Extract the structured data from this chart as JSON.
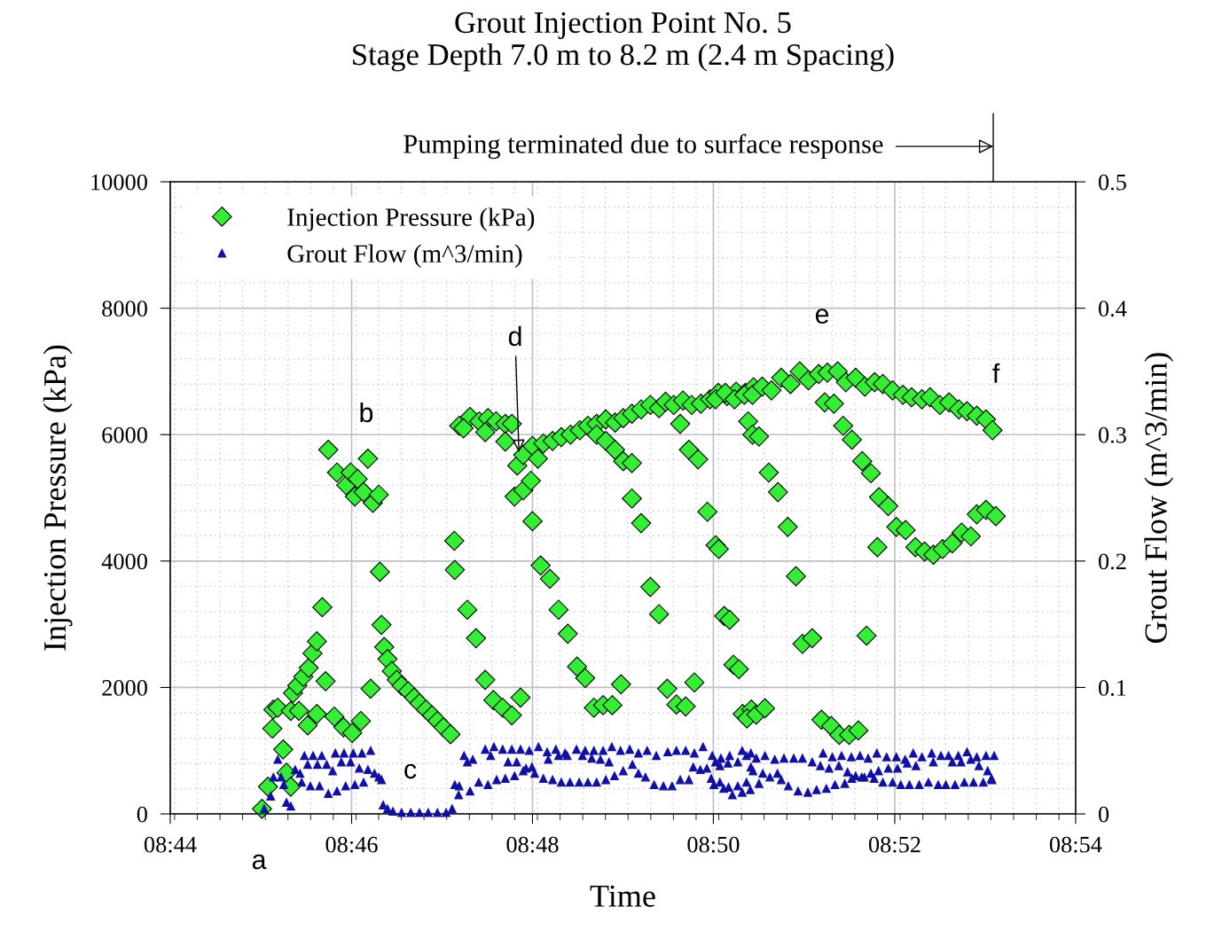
{
  "chart_data": {
    "type": "scatter",
    "title": "Grout Injection Point No. 5\nStage Depth 7.0 m to 8.2 m (2.4 m Spacing)",
    "xlabel": "Time",
    "ylabel": "Injection Pressure (kPa)",
    "y2label": "Grout Flow (m^3/min)",
    "xlim": [
      8.7333,
      8.9
    ],
    "xticks": [
      {
        "value": 8.7333,
        "label": "08:44"
      },
      {
        "value": 8.7667,
        "label": "08:46"
      },
      {
        "value": 8.8,
        "label": "08:48"
      },
      {
        "value": 8.8333,
        "label": "08:50"
      },
      {
        "value": 8.8667,
        "label": "08:52"
      },
      {
        "value": 8.9,
        "label": "08:54"
      }
    ],
    "ylim": [
      0,
      10000
    ],
    "yticks": [
      0,
      2000,
      4000,
      6000,
      8000,
      10000
    ],
    "y2lim": [
      0,
      0.5
    ],
    "y2ticks": [
      0,
      0.1,
      0.2,
      0.3,
      0.4,
      0.5
    ],
    "grid": true,
    "legend": "top left",
    "annotations": [
      "a",
      "b",
      "c",
      {
        "text": "d",
        "x": 8.7975,
        "y": 5720
      },
      "e",
      "f",
      "Pumping terminated due to surface response"
    ],
    "series": [
      {
        "name": "Injection Pressure (kPa)",
        "color": "#33ee33",
        "marker": "diamond",
        "axis": "y",
        "x": [
          8.7502,
          8.7513,
          8.7521,
          8.7523,
          8.7531,
          8.7541,
          8.7547,
          8.7555,
          8.7555,
          8.7559,
          8.7567,
          8.757,
          8.7578,
          8.7586,
          8.7588,
          8.7595,
          8.7603,
          8.7603,
          8.7613,
          8.7619,
          8.7624,
          8.7635,
          8.764,
          8.7652,
          8.7657,
          8.7665,
          8.7668,
          8.7673,
          8.7678,
          8.7684,
          8.7689,
          8.7697,
          8.7702,
          8.7706,
          8.7717,
          8.7719,
          8.7722,
          8.7727,
          8.7733,
          8.7741,
          8.775,
          8.7759,
          8.7771,
          8.7782,
          8.7792,
          8.7804,
          8.7815,
          8.7825,
          8.7836,
          8.7849,
          8.7856,
          8.7857,
          8.788,
          8.7896,
          8.7913,
          8.7928,
          8.7945,
          8.7962,
          8.7978,
          8.7865,
          8.7885,
          8.7902,
          8.7918,
          8.7933,
          8.795,
          8.7962,
          8.7873,
          8.7913,
          8.795,
          8.7972,
          8.7967,
          8.7983,
          8.7997,
          8.8,
          8.7983,
          8.8,
          8.801,
          8.802,
          8.8037,
          8.8053,
          8.807,
          8.8087,
          8.8102,
          8.8118,
          8.8135,
          8.8152,
          8.8167,
          8.8183,
          8.82,
          8.8217,
          8.8233,
          8.8245,
          8.826,
          8.8277,
          8.8293,
          8.831,
          8.8327,
          8.8342,
          8.8358,
          8.8375,
          8.8392,
          8.8407,
          8.8118,
          8.8135,
          8.8152,
          8.8167,
          8.8183,
          8.8183,
          8.82,
          8.8217,
          8.8233,
          8.8248,
          8.8265,
          8.8282,
          8.8298,
          8.8272,
          8.8288,
          8.8305,
          8.8322,
          8.8337,
          8.8353,
          8.837,
          8.8387,
          8.8403,
          8.8397,
          8.8405,
          8.8015,
          8.8032,
          8.8048,
          8.8065,
          8.8082,
          8.8097,
          8.8113,
          8.813,
          8.8147,
          8.8163,
          8.8337,
          8.8355,
          8.8372,
          8.839,
          8.8405,
          8.8423,
          8.844,
          8.8458,
          8.8475,
          8.8492,
          8.8508,
          8.8527,
          8.8543,
          8.8562,
          8.8577,
          8.8595,
          8.8612,
          8.863,
          8.8645,
          8.8663,
          8.8682,
          8.8698,
          8.8717,
          8.8732,
          8.875,
          8.8767,
          8.8785,
          8.88,
          8.8818,
          8.8835,
          8.8847,
          8.8417,
          8.8435,
          8.8452,
          8.847,
          8.8485,
          8.8363,
          8.838,
          8.8395,
          8.8412,
          8.8428,
          8.8538,
          8.8555,
          8.8572,
          8.8588,
          8.8607,
          8.8623,
          8.8638,
          8.8655,
          8.867,
          8.8687,
          8.8705,
          8.8722,
          8.8738,
          8.8755,
          8.8773,
          8.879,
          8.8807,
          8.8818,
          8.8835,
          8.8853,
          8.8343,
          8.8635,
          8.8497,
          8.8515,
          8.8615,
          8.8532,
          8.855,
          8.8565,
          8.8583,
          8.86
        ],
        "values": [
          80,
          430,
          1350,
          1650,
          1680,
          1020,
          650,
          430,
          1630,
          1910,
          2030,
          1630,
          2170,
          1400,
          2310,
          2540,
          2730,
          1580,
          3270,
          2100,
          5760,
          1540,
          5400,
          1370,
          5200,
          5400,
          1280,
          5020,
          5300,
          1470,
          5090,
          5620,
          1980,
          4920,
          5050,
          3830,
          2990,
          2640,
          2450,
          2260,
          2120,
          2030,
          1940,
          1840,
          1750,
          1650,
          1560,
          1470,
          1370,
          1260,
          4320,
          3860,
          3230,
          2780,
          2120,
          1800,
          1680,
          1560,
          1840,
          6140,
          6280,
          6210,
          6260,
          6210,
          6170,
          6170,
          6100,
          6040,
          5890,
          5510,
          5020,
          5120,
          5270,
          4630,
          5680,
          5820,
          5620,
          5860,
          5900,
          5960,
          6000,
          6070,
          6140,
          6170,
          6240,
          6190,
          6260,
          6330,
          6400,
          6470,
          6420,
          6520,
          6470,
          6540,
          6470,
          6490,
          6560,
          6660,
          6610,
          6680,
          6660,
          6750,
          6000,
          5900,
          5760,
          5580,
          5550,
          4990,
          4600,
          3590,
          3160,
          1980,
          1730,
          1700,
          2080,
          6170,
          5760,
          5610,
          4780,
          4250,
          3130,
          2360,
          1580,
          1650,
          6210,
          6000,
          3930,
          3720,
          3230,
          2850,
          2330,
          2150,
          1680,
          1720,
          1720,
          2050,
          6560,
          6660,
          6560,
          6630,
          6630,
          6760,
          6700,
          6900,
          6800,
          7000,
          6860,
          6960,
          6980,
          7000,
          6830,
          6900,
          6760,
          6830,
          6800,
          6700,
          6630,
          6590,
          6560,
          6590,
          6470,
          6510,
          6400,
          6370,
          6300,
          6240,
          6070,
          5970,
          5400,
          5090,
          4540,
          3760,
          3070,
          2290,
          1510,
          1570,
          1670,
          6510,
          6490,
          6140,
          5920,
          5580,
          5390,
          5010,
          4870,
          4540,
          4490,
          4220,
          4150,
          4100,
          4190,
          4280,
          4450,
          4390,
          4740,
          4810,
          4710,
          4190,
          4220,
          2690,
          2780,
          2820,
          1490,
          1390,
          1250,
          1250,
          1320
        ]
      },
      {
        "name": "Grout Flow (m^3/min)",
        "color": "#1010a8",
        "marker": "triangle",
        "axis": "y2",
        "x": [
          8.7506,
          8.7518,
          8.7523,
          8.7531,
          8.7537,
          8.7542,
          8.7547,
          8.7555,
          8.7563,
          8.7572,
          8.7575,
          8.758,
          8.7586,
          8.7591,
          8.7596,
          8.7604,
          8.7608,
          8.7612,
          8.7621,
          8.7624,
          8.7632,
          8.7637,
          8.764,
          8.7648,
          8.7653,
          8.7656,
          8.7665,
          8.767,
          8.7673,
          8.7681,
          8.7686,
          8.7689,
          8.7697,
          8.7702,
          8.7709,
          8.7717,
          8.7722,
          8.7725,
          8.7733,
          8.7743,
          8.7759,
          8.7776,
          8.7792,
          8.7808,
          8.7825,
          8.7841,
          8.7852,
          8.7857,
          8.7865,
          8.7864,
          8.7874,
          8.788,
          8.789,
          8.7885,
          8.7913,
          8.7929,
          8.7945,
          8.7962,
          8.7978,
          8.7994,
          8.8011,
          8.8027,
          8.8043,
          8.806,
          8.8081,
          8.8097,
          8.8113,
          8.813,
          8.8146,
          8.8162,
          8.8179,
          8.8195,
          8.8211,
          8.8228,
          8.8249,
          8.8265,
          8.8282,
          8.8298,
          8.8314,
          8.8331,
          8.8347,
          8.8363,
          8.8386,
          8.8402,
          8.7901,
          8.7918,
          8.7934,
          8.795,
          8.7967,
          8.7983,
          8.7988,
          8.7999,
          8.8004,
          8.802,
          8.8037,
          8.8053,
          8.8069,
          8.8086,
          8.8102,
          8.8118,
          8.8135,
          8.8151,
          8.8167,
          8.8184,
          8.8195,
          8.8208,
          8.8224,
          8.8241,
          8.8257,
          8.8272,
          8.8288,
          8.8296,
          8.8309,
          8.8321,
          8.8329,
          8.8345,
          8.8361,
          8.8378,
          8.8394,
          8.8402,
          8.7923,
          8.7955,
          8.7971,
          8.8029,
          8.8048,
          8.8064,
          8.8092,
          8.8109,
          8.8125,
          8.8141,
          8.8337,
          8.8345,
          8.836,
          8.8378,
          8.8394,
          8.8412,
          8.8428,
          8.8446,
          8.8463,
          8.8481,
          8.8497,
          8.8515,
          8.8535,
          8.8552,
          8.8569,
          8.8587,
          8.8603,
          8.8618,
          8.8634,
          8.8652,
          8.867,
          8.8686,
          8.8701,
          8.8717,
          8.8735,
          8.8752,
          8.8766,
          8.8784,
          8.88,
          8.8818,
          8.8835,
          8.885,
          8.8406,
          8.8424,
          8.8437,
          8.8451,
          8.8458,
          8.853,
          8.8546,
          8.8564,
          8.858,
          8.8595,
          8.8611,
          8.8623,
          8.8637,
          8.8655,
          8.8672,
          8.869,
          8.8706,
          8.8738,
          8.8773,
          8.8789,
          8.8807,
          8.8822,
          8.8838,
          8.8846,
          8.8334,
          8.8352,
          8.8368,
          8.8386,
          8.8401,
          8.8417,
          8.8471,
          8.8489,
          8.8507,
          8.8523,
          8.8541,
          8.8557,
          8.8575,
          8.8588,
          8.8606,
          8.8629,
          8.8645,
          8.8663,
          8.8678,
          8.8694,
          8.8712,
          8.8729,
          8.8747,
          8.8761,
          8.8778,
          8.8795,
          8.8812,
          8.883,
          8.8845
        ],
        "values": [
          0.004,
          0.014,
          0.029,
          0.043,
          0.029,
          0.023,
          0.009,
          0.006,
          0.035,
          0.032,
          0.025,
          0.046,
          0.039,
          0.022,
          0.046,
          0.039,
          0.022,
          0.046,
          0.039,
          0.016,
          0.034,
          0.048,
          0.018,
          0.041,
          0.048,
          0.022,
          0.041,
          0.048,
          0.023,
          0.036,
          0.048,
          0.025,
          0.035,
          0.05,
          0.032,
          0.029,
          0.027,
          0.007,
          0.004,
          0.002,
          0.001,
          0.001,
          0.001,
          0.001,
          0.001,
          0.001,
          0.004,
          0.023,
          0.022,
          0.015,
          0.046,
          0.041,
          0.043,
          0.018,
          0.051,
          0.053,
          0.051,
          0.051,
          0.051,
          0.05,
          0.053,
          0.049,
          0.051,
          0.048,
          0.051,
          0.05,
          0.05,
          0.05,
          0.053,
          0.05,
          0.051,
          0.048,
          0.05,
          0.046,
          0.049,
          0.05,
          0.05,
          0.048,
          0.053,
          0.046,
          0.044,
          0.046,
          0.05,
          0.048,
          0.025,
          0.023,
          0.027,
          0.028,
          0.03,
          0.034,
          0.036,
          0.037,
          0.032,
          0.028,
          0.027,
          0.025,
          0.025,
          0.025,
          0.025,
          0.025,
          0.027,
          0.03,
          0.034,
          0.039,
          0.032,
          0.029,
          0.023,
          0.022,
          0.022,
          0.027,
          0.027,
          0.037,
          0.035,
          0.036,
          0.028,
          0.025,
          0.021,
          0.022,
          0.025,
          0.037,
          0.046,
          0.041,
          0.041,
          0.043,
          0.046,
          0.046,
          0.046,
          0.044,
          0.043,
          0.041,
          0.041,
          0.038,
          0.04,
          0.041,
          0.046,
          0.044,
          0.046,
          0.043,
          0.044,
          0.044,
          0.044,
          0.041,
          0.048,
          0.045,
          0.046,
          0.045,
          0.046,
          0.044,
          0.048,
          0.045,
          0.045,
          0.043,
          0.048,
          0.045,
          0.048,
          0.046,
          0.046,
          0.046,
          0.049,
          0.045,
          0.046,
          0.046,
          0.034,
          0.032,
          0.029,
          0.032,
          0.027,
          0.038,
          0.036,
          0.038,
          0.033,
          0.03,
          0.029,
          0.032,
          0.034,
          0.036,
          0.036,
          0.04,
          0.038,
          0.041,
          0.041,
          0.041,
          0.043,
          0.038,
          0.034,
          0.027,
          0.023,
          0.02,
          0.015,
          0.017,
          0.019,
          0.024,
          0.022,
          0.018,
          0.017,
          0.019,
          0.02,
          0.023,
          0.024,
          0.028,
          0.029,
          0.028,
          0.025,
          0.025,
          0.023,
          0.023,
          0.023,
          0.025,
          0.023,
          0.023,
          0.023,
          0.025,
          0.025,
          0.025,
          0.028
        ]
      }
    ]
  }
}
